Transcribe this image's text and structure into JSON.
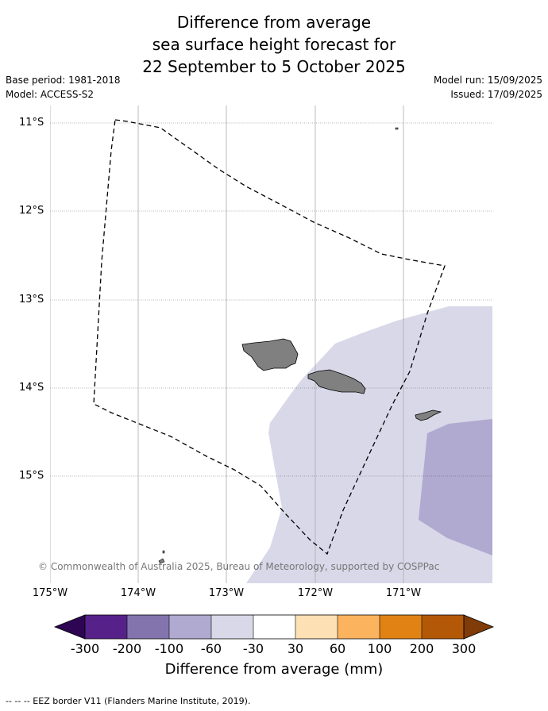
{
  "title_lines": [
    "Difference from average",
    "sea surface height forecast for",
    "22 September to 5 October 2025"
  ],
  "meta": {
    "base_period": "Base period: 1981-2018",
    "model": "Model: ACCESS-S2",
    "model_run": "Model run: 15/09/2025",
    "issued": "Issued: 17/09/2025"
  },
  "map": {
    "lat_labels": [
      "11°S",
      "12°S",
      "13°S",
      "14°S",
      "15°S"
    ],
    "lon_labels": [
      "175°W",
      "174°W",
      "173°W",
      "172°W",
      "171°W"
    ],
    "copyright": "© Commonwealth of Australia 2025, Bureau of Meteorology, supported by COSPPac",
    "colors": {
      "light_band": "#d8d8e9",
      "mid_band": "#b0a9d0",
      "land": "#808080"
    }
  },
  "colorbar": {
    "title": "Difference from average (mm)",
    "tick_labels": [
      "-300",
      "-200",
      "-100",
      "-60",
      "-30",
      "30",
      "60",
      "100",
      "200",
      "300"
    ],
    "colors": [
      "#2d0552",
      "#56228a",
      "#8474ae",
      "#b0a9d0",
      "#d8d8e9",
      "#ffffff",
      "#fde0b4",
      "#fbb35e",
      "#e08214",
      "#b35806",
      "#7f3b08"
    ]
  },
  "legend": "--  --  -- EEZ border V11 (Flanders Marine Institute, 2019)."
}
